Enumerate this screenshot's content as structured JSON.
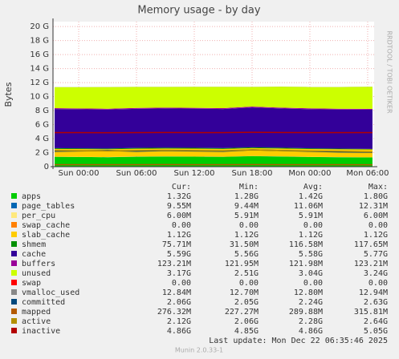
{
  "chart_data": {
    "type": "area",
    "title": "Memory usage - by day",
    "ylabel": "Bytes",
    "side_text": "RRDTOOL / TOBI OETIKER",
    "footer": "Last update:  Mon Dec 22 06:35:46 2025",
    "version": "Munin 2.0.33-1",
    "stat_headers": [
      "Cur:",
      "Min:",
      "Avg:",
      "Max:"
    ],
    "grid": true,
    "xlim": [
      -2.67,
      30.67
    ],
    "xticks": [
      {
        "value": 0,
        "label": "Sun 00:00"
      },
      {
        "value": 6,
        "label": "Sun 06:00"
      },
      {
        "value": 12,
        "label": "Sun 12:00"
      },
      {
        "value": 18,
        "label": "Sun 18:00"
      },
      {
        "value": 24,
        "label": "Mon 00:00"
      },
      {
        "value": 30,
        "label": "Mon 06:00"
      }
    ],
    "ylim": [
      0,
      20.7
    ],
    "yticks": [
      0,
      {
        "value": 2,
        "label": "2 G"
      },
      {
        "value": 4,
        "label": "4 G"
      },
      {
        "value": 6,
        "label": "6 G"
      },
      {
        "value": 8,
        "label": "8 G"
      },
      {
        "value": 10,
        "label": "10 G"
      },
      {
        "value": 12,
        "label": "12 G"
      },
      {
        "value": 14,
        "label": "14 G"
      },
      {
        "value": 16,
        "label": "16 G"
      },
      {
        "value": 18,
        "label": "18 G"
      },
      {
        "value": 20,
        "label": "20 G"
      }
    ],
    "x": [
      -2.5,
      0,
      3,
      6,
      9,
      12,
      15,
      18,
      21,
      24,
      27,
      30.5
    ],
    "series": [
      {
        "name": "apps",
        "color": "#00cc00",
        "style": "area",
        "stats": [
          "1.32G",
          "1.28G",
          "1.42G",
          "1.80G"
        ],
        "values": [
          1.4,
          1.38,
          1.35,
          1.42,
          1.45,
          1.43,
          1.4,
          1.5,
          1.45,
          1.38,
          1.35,
          1.32
        ]
      },
      {
        "name": "page_tables",
        "color": "#0066b3",
        "style": "area",
        "stats": [
          "9.55M",
          "9.44M",
          "11.06M",
          "12.31M"
        ],
        "values": [
          0.0096,
          0.0095,
          0.0095,
          0.011,
          0.011,
          0.011,
          0.011,
          0.012,
          0.011,
          0.0096,
          0.0095,
          0.0095
        ]
      },
      {
        "name": "per_cpu",
        "color": "#ffe87c",
        "style": "area",
        "stats": [
          "6.00M",
          "5.91M",
          "5.91M",
          "6.00M"
        ],
        "values": [
          0.006,
          0.006,
          0.006,
          0.006,
          0.006,
          0.006,
          0.006,
          0.006,
          0.006,
          0.006,
          0.006,
          0.006
        ]
      },
      {
        "name": "swap_cache",
        "color": "#ff8000",
        "style": "area",
        "stats": [
          "0.00",
          "0.00",
          "0.00",
          "0.00"
        ],
        "values": [
          0,
          0,
          0,
          0,
          0,
          0,
          0,
          0,
          0,
          0,
          0,
          0
        ]
      },
      {
        "name": "slab_cache",
        "color": "#ffcc00",
        "style": "area",
        "stats": [
          "1.12G",
          "1.12G",
          "1.12G",
          "1.12G"
        ],
        "values": [
          1.12,
          1.12,
          1.12,
          1.12,
          1.12,
          1.12,
          1.12,
          1.12,
          1.12,
          1.12,
          1.12,
          1.12
        ]
      },
      {
        "name": "shmem",
        "color": "#008f00",
        "style": "area",
        "stats": [
          "75.71M",
          "31.50M",
          "116.58M",
          "117.65M"
        ],
        "values": [
          0.11,
          0.1,
          0.1,
          0.115,
          0.115,
          0.115,
          0.11,
          0.117,
          0.116,
          0.1,
          0.09,
          0.076
        ]
      },
      {
        "name": "cache",
        "color": "#330099",
        "style": "area",
        "stats": [
          "5.59G",
          "5.56G",
          "5.58G",
          "5.77G"
        ],
        "values": [
          5.58,
          5.57,
          5.56,
          5.58,
          5.6,
          5.59,
          5.58,
          5.7,
          5.6,
          5.58,
          5.57,
          5.59
        ]
      },
      {
        "name": "buffers",
        "color": "#990099",
        "style": "area",
        "stats": [
          "123.21M",
          "121.95M",
          "121.98M",
          "123.21M"
        ],
        "values": [
          0.122,
          0.122,
          0.122,
          0.122,
          0.122,
          0.122,
          0.122,
          0.122,
          0.122,
          0.122,
          0.122,
          0.123
        ]
      },
      {
        "name": "unused",
        "color": "#ccff00",
        "style": "area",
        "stats": [
          "3.17G",
          "2.51G",
          "3.04G",
          "3.24G"
        ],
        "values": [
          3.0,
          3.05,
          3.1,
          3.0,
          2.95,
          3.0,
          3.05,
          2.8,
          3.0,
          3.05,
          3.1,
          3.17
        ]
      },
      {
        "name": "swap",
        "color": "#ff0000",
        "style": "area",
        "stats": [
          "0.00",
          "0.00",
          "0.00",
          "0.00"
        ],
        "values": [
          0,
          0,
          0,
          0,
          0,
          0,
          0,
          0,
          0,
          0,
          0,
          0
        ]
      },
      {
        "name": "vmalloc_used",
        "color": "#888888",
        "style": "area",
        "stats": [
          "12.84M",
          "12.70M",
          "12.80M",
          "12.94M"
        ],
        "values": [
          0.0128,
          0.0128,
          0.0128,
          0.0128,
          0.0128,
          0.0128,
          0.0128,
          0.0128,
          0.0128,
          0.0128,
          0.0128,
          0.0128
        ]
      },
      {
        "name": "committed",
        "color": "#00487d",
        "style": "line",
        "stats": [
          "2.06G",
          "2.05G",
          "2.24G",
          "2.63G"
        ],
        "values": [
          2.2,
          2.25,
          2.3,
          2.2,
          2.3,
          2.25,
          2.2,
          2.4,
          2.3,
          2.2,
          2.1,
          2.06
        ]
      },
      {
        "name": "mapped",
        "color": "#b35a00",
        "style": "line",
        "stats": [
          "276.32M",
          "227.27M",
          "289.88M",
          "315.81M"
        ],
        "values": [
          0.29,
          0.29,
          0.28,
          0.29,
          0.3,
          0.29,
          0.29,
          0.3,
          0.29,
          0.28,
          0.28,
          0.276
        ]
      },
      {
        "name": "active",
        "color": "#b38f00",
        "style": "line",
        "stats": [
          "2.12G",
          "2.06G",
          "2.28G",
          "2.64G"
        ],
        "values": [
          2.3,
          2.28,
          2.25,
          2.3,
          2.35,
          2.3,
          2.28,
          2.4,
          2.3,
          2.25,
          2.2,
          2.12
        ]
      },
      {
        "name": "inactive",
        "color": "#b30000",
        "style": "line",
        "stats": [
          "4.86G",
          "4.85G",
          "4.86G",
          "5.05G"
        ],
        "values": [
          4.86,
          4.86,
          4.85,
          4.86,
          4.87,
          4.86,
          4.86,
          4.9,
          4.87,
          4.86,
          4.86,
          4.86
        ]
      }
    ]
  }
}
